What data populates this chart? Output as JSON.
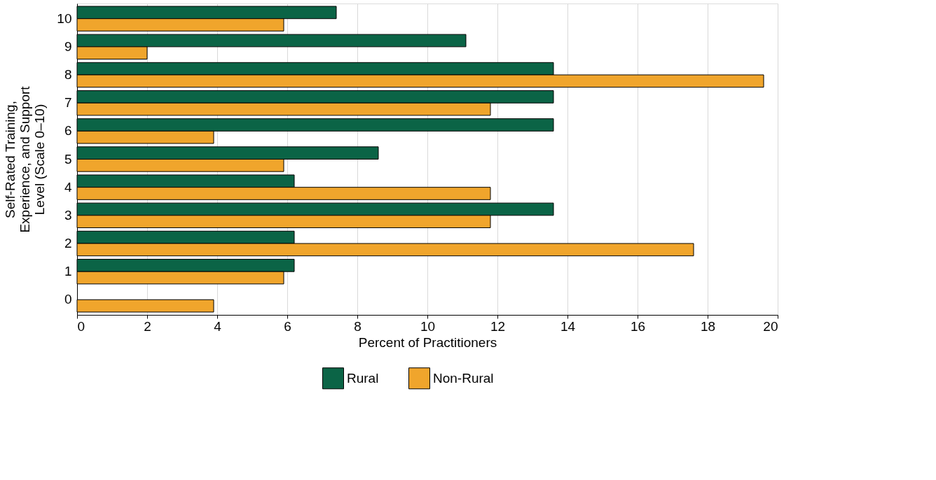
{
  "chart_data": {
    "type": "bar",
    "orientation": "horizontal",
    "xlabel": "Percent of Practitioners",
    "ylabel": "Self-Rated Training,\nExperience, and Support\nLevel (Scale 0–10)",
    "categories": [
      "10",
      "9",
      "8",
      "7",
      "6",
      "5",
      "4",
      "3",
      "2",
      "1",
      "0"
    ],
    "series": [
      {
        "name": "Rural",
        "color": "#0b6446",
        "values": [
          7.4,
          11.1,
          13.6,
          13.6,
          13.6,
          8.6,
          6.2,
          13.6,
          6.2,
          6.2,
          null
        ]
      },
      {
        "name": "Non-Rural",
        "color": "#f0a52c",
        "values": [
          5.9,
          2.0,
          19.6,
          11.8,
          3.9,
          5.9,
          11.8,
          11.8,
          17.6,
          5.9,
          3.9
        ]
      }
    ],
    "xlim": [
      0,
      20
    ],
    "xticks": [
      0,
      2,
      4,
      6,
      8,
      10,
      12,
      14,
      16,
      18,
      20
    ],
    "grid": "x",
    "legend": "bottom"
  }
}
